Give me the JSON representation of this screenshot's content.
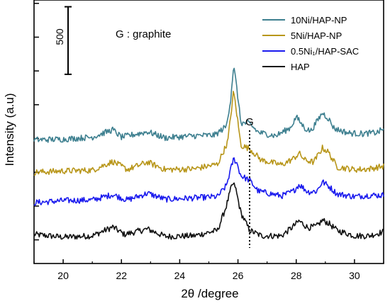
{
  "chart_data": {
    "type": "line",
    "xlabel": "2θ /degree",
    "ylabel": "Intensity (a.u)",
    "xlim": [
      19,
      31
    ],
    "x_ticks": [
      "20",
      "22",
      "24",
      "26",
      "28",
      "30"
    ],
    "x_tick_values": [
      20,
      22,
      24,
      26,
      28,
      30
    ],
    "scale_bar_label": "500",
    "scale_bar_value": 500,
    "annotation": {
      "text": "G  : graphite"
    },
    "peak_marker": {
      "label": "G",
      "x": 26.4
    },
    "legend_position": "top-right",
    "series": [
      {
        "name": "10Ni/HAP-NP",
        "color": "#3d7f8f",
        "offset": 1480,
        "points": [
          [
            19,
            0
          ],
          [
            20,
            10
          ],
          [
            21,
            40
          ],
          [
            21.7,
            150
          ],
          [
            22,
            40
          ],
          [
            22.9,
            120
          ],
          [
            23.5,
            30
          ],
          [
            24.5,
            60
          ],
          [
            25.2,
            70
          ],
          [
            25.6,
            200
          ],
          [
            25.75,
            600
          ],
          [
            25.85,
            1100
          ],
          [
            25.95,
            800
          ],
          [
            26.1,
            250
          ],
          [
            26.4,
            240
          ],
          [
            26.7,
            110
          ],
          [
            27.3,
            60
          ],
          [
            27.8,
            180
          ],
          [
            28,
            340
          ],
          [
            28.3,
            170
          ],
          [
            28.5,
            130
          ],
          [
            28.9,
            400
          ],
          [
            29.1,
            320
          ],
          [
            29.3,
            170
          ],
          [
            29.8,
            100
          ],
          [
            30.3,
            90
          ],
          [
            30.8,
            110
          ],
          [
            31,
            170
          ]
        ]
      },
      {
        "name": "5Ni/HAP-NP",
        "color": "#b8961a",
        "offset": 1000,
        "points": [
          [
            19,
            0
          ],
          [
            20,
            20
          ],
          [
            21,
            30
          ],
          [
            21.7,
            160
          ],
          [
            22.2,
            40
          ],
          [
            22.9,
            150
          ],
          [
            23.5,
            40
          ],
          [
            24.5,
            50
          ],
          [
            25.3,
            120
          ],
          [
            25.65,
            450
          ],
          [
            25.85,
            1200
          ],
          [
            25.95,
            900
          ],
          [
            26.1,
            400
          ],
          [
            26.4,
            350
          ],
          [
            26.8,
            180
          ],
          [
            27.5,
            110
          ],
          [
            27.9,
            200
          ],
          [
            28.1,
            280
          ],
          [
            28.3,
            180
          ],
          [
            28.6,
            150
          ],
          [
            28.9,
            360
          ],
          [
            29.1,
            300
          ],
          [
            29.4,
            80
          ],
          [
            30,
            40
          ],
          [
            30.5,
            50
          ],
          [
            31,
            90
          ]
        ]
      },
      {
        "name": "0.5Ni₁/HAP-SAC",
        "color": "#1a1aee",
        "offset": 550,
        "points": [
          [
            19,
            0
          ],
          [
            20,
            30
          ],
          [
            21,
            40
          ],
          [
            21.7,
            120
          ],
          [
            22.2,
            40
          ],
          [
            22.9,
            140
          ],
          [
            23.5,
            50
          ],
          [
            24.5,
            70
          ],
          [
            25.3,
            90
          ],
          [
            25.6,
            250
          ],
          [
            25.85,
            650
          ],
          [
            25.95,
            600
          ],
          [
            26.1,
            400
          ],
          [
            26.4,
            330
          ],
          [
            26.7,
            170
          ],
          [
            27.5,
            100
          ],
          [
            27.9,
            170
          ],
          [
            28.1,
            270
          ],
          [
            28.4,
            160
          ],
          [
            28.7,
            170
          ],
          [
            28.9,
            310
          ],
          [
            29.1,
            250
          ],
          [
            29.4,
            130
          ],
          [
            30,
            90
          ],
          [
            30.5,
            110
          ],
          [
            31,
            110
          ]
        ]
      },
      {
        "name": "HAP",
        "color": "#111111",
        "offset": 0,
        "points": [
          [
            19,
            80
          ],
          [
            20,
            40
          ],
          [
            21,
            60
          ],
          [
            21.7,
            190
          ],
          [
            22.1,
            80
          ],
          [
            22.9,
            160
          ],
          [
            23.5,
            50
          ],
          [
            24.5,
            60
          ],
          [
            25.3,
            140
          ],
          [
            25.6,
            500
          ],
          [
            25.8,
            820
          ],
          [
            25.9,
            800
          ],
          [
            26.1,
            400
          ],
          [
            26.4,
            140
          ],
          [
            26.8,
            60
          ],
          [
            27.5,
            60
          ],
          [
            27.9,
            200
          ],
          [
            28.1,
            280
          ],
          [
            28.4,
            180
          ],
          [
            28.7,
            200
          ],
          [
            28.9,
            290
          ],
          [
            29.1,
            250
          ],
          [
            29.4,
            140
          ],
          [
            30,
            60
          ],
          [
            30.5,
            60
          ],
          [
            31,
            120
          ]
        ]
      }
    ]
  }
}
